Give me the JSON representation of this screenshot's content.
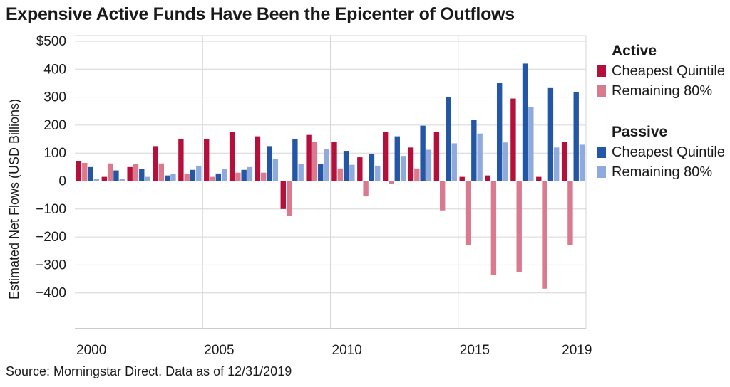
{
  "title": "Expensive Active Funds Have Been the Epicenter of Outflows",
  "source": "Source: Morningstar Direct. Data as of 12/31/2019",
  "chart_data": {
    "type": "bar",
    "ylabel": "Estimated Net Flows (USD Billions)",
    "ylim": [
      -500,
      500
    ],
    "yticks": [
      {
        "value": 500,
        "label": "$500"
      },
      {
        "value": 400,
        "label": "400"
      },
      {
        "value": 300,
        "label": "300"
      },
      {
        "value": 200,
        "label": "200"
      },
      {
        "value": 100,
        "label": "100"
      },
      {
        "value": 0,
        "label": "0"
      },
      {
        "value": -100,
        "label": "−100"
      },
      {
        "value": -200,
        "label": "−200"
      },
      {
        "value": -300,
        "label": "−300"
      },
      {
        "value": -400,
        "label": "−400"
      }
    ],
    "categories": [
      2000,
      2001,
      2002,
      2003,
      2004,
      2005,
      2006,
      2007,
      2008,
      2009,
      2010,
      2011,
      2012,
      2013,
      2014,
      2015,
      2016,
      2017,
      2018,
      2019
    ],
    "xtick_labels": [
      {
        "year": 2000,
        "label": "2000"
      },
      {
        "year": 2005,
        "label": "2005"
      },
      {
        "year": 2010,
        "label": "2010"
      },
      {
        "year": 2015,
        "label": "2015"
      },
      {
        "year": 2019,
        "label": "2019"
      }
    ],
    "legend": [
      {
        "group": "Active",
        "items": [
          {
            "name": "Cheapest Quintile",
            "color": "#B5103C"
          },
          {
            "name": "Remaining 80%",
            "color": "#D97A8E"
          }
        ]
      },
      {
        "group": "Passive",
        "items": [
          {
            "name": "Cheapest Quintile",
            "color": "#2456A6"
          },
          {
            "name": "Remaining 80%",
            "color": "#8FAADC"
          }
        ]
      }
    ],
    "series": [
      {
        "group": "Active",
        "name": "Cheapest Quintile",
        "color": "#B5103C",
        "values": [
          70,
          15,
          50,
          125,
          150,
          150,
          175,
          160,
          -100,
          165,
          140,
          85,
          175,
          120,
          175,
          15,
          20,
          295,
          15,
          140
        ]
      },
      {
        "group": "Active",
        "name": "Remaining 80%",
        "color": "#D97A8E",
        "values": [
          65,
          63,
          60,
          63,
          25,
          15,
          30,
          30,
          -125,
          140,
          45,
          -55,
          -10,
          45,
          -105,
          -230,
          -335,
          -325,
          -385,
          -230
        ]
      },
      {
        "group": "Passive",
        "name": "Cheapest Quintile",
        "color": "#2456A6",
        "values": [
          50,
          38,
          42,
          20,
          40,
          27,
          40,
          125,
          150,
          60,
          108,
          98,
          160,
          198,
          300,
          218,
          350,
          420,
          335,
          318
        ]
      },
      {
        "group": "Passive",
        "name": "Remaining 80%",
        "color": "#8FAADC",
        "values": [
          8,
          8,
          15,
          25,
          55,
          42,
          50,
          80,
          60,
          115,
          58,
          55,
          90,
          112,
          135,
          170,
          138,
          265,
          120,
          130
        ]
      }
    ],
    "grid": true,
    "legend_position": "right"
  }
}
